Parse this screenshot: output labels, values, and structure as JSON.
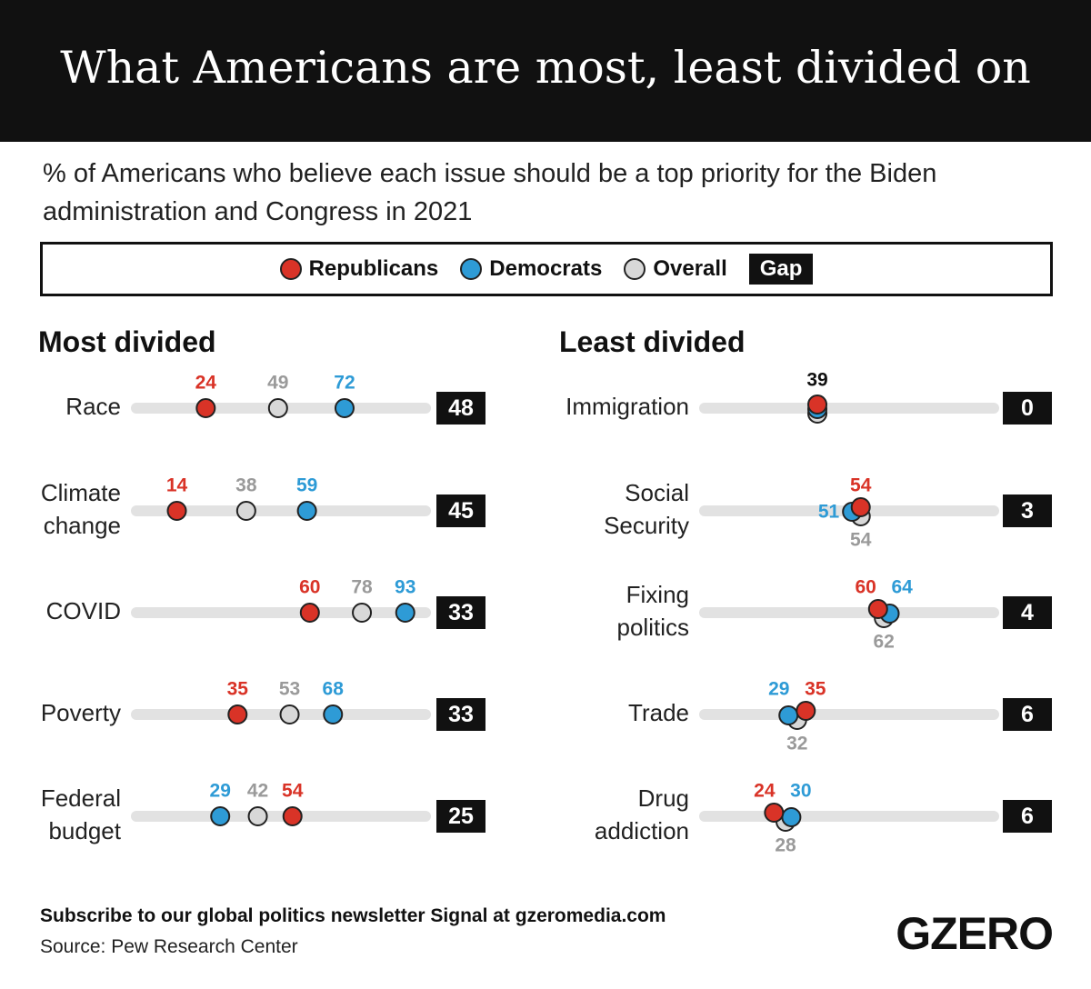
{
  "header": {
    "title": "What Americans are most, least divided on",
    "subtitle": "% of Americans who believe each issue should be a top priority for the Biden administration and Congress in 2021"
  },
  "footer": {
    "newsletter": "Subscribe to our global politics newsletter Signal at gzeromedia.com",
    "source": "Source: Pew Research Center",
    "logo": "GZERO"
  },
  "chart_data": [
    {
      "type": "dot",
      "title": "Most divided",
      "categories": [
        "Race",
        "Climate change",
        "COVID",
        "Poverty",
        "Federal budget"
      ],
      "series": [
        {
          "name": "Republicans",
          "color": "#d93327",
          "values": [
            24,
            14,
            60,
            35,
            54
          ]
        },
        {
          "name": "Democrats",
          "color": "#2e9bd6",
          "values": [
            72,
            59,
            93,
            68,
            29
          ]
        },
        {
          "name": "Overall",
          "color": "#d8d8d8",
          "values": [
            49,
            38,
            78,
            53,
            42
          ]
        }
      ],
      "gap": {
        "name": "Gap",
        "values": [
          48,
          45,
          33,
          33,
          25
        ]
      },
      "xlim": [
        0,
        100
      ],
      "overall_label": "above"
    },
    {
      "type": "dot",
      "title": "Least divided",
      "categories": [
        "Immigration",
        "Social Security",
        "Fixing politics",
        "Trade",
        "Drug addiction"
      ],
      "series": [
        {
          "color": "#d93327",
          "values": [
            39,
            54,
            60,
            35,
            24
          ]
        },
        {
          "color": "#2e9bd6",
          "values": [
            39,
            51,
            64,
            29,
            30
          ]
        },
        {
          "color": "#d8d8d8",
          "values": [
            39,
            54,
            62,
            32,
            28
          ]
        }
      ],
      "gap": {
        "values": [
          0,
          3,
          4,
          6,
          6
        ]
      },
      "xlim": [
        0,
        100
      ],
      "overall_label": "below"
    }
  ]
}
